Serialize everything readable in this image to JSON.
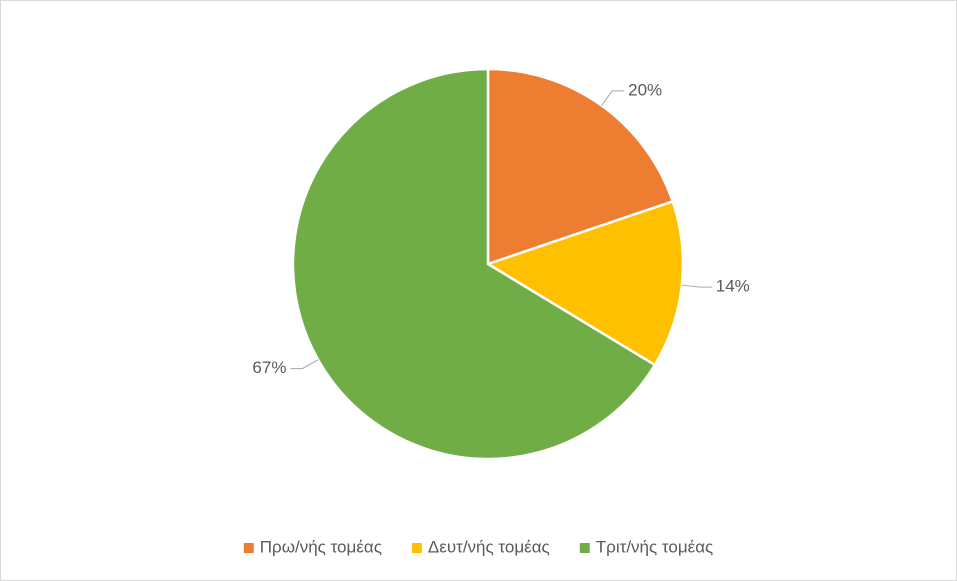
{
  "chart_data": {
    "type": "pie",
    "categories": [
      "Πρω/νής τομέας",
      "Δευτ/νής τομέας",
      "Τριτ/νής τομέας"
    ],
    "values": [
      20,
      14,
      67
    ],
    "value_labels": [
      "20%",
      "14%",
      "67%"
    ],
    "colors": [
      "#ED7D31",
      "#FFC000",
      "#70AD47"
    ],
    "legend": "bottom"
  }
}
